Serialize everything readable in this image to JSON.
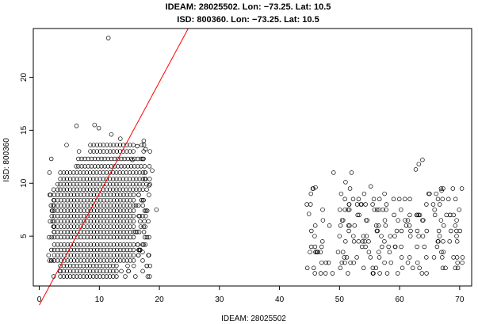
{
  "chart_data": {
    "type": "scatter",
    "title_lines": [
      "IDEAM: 28025502. Lon: −73.25. Lat: 10.5",
      "ISD: 800360. Lon: −73.25. Lat: 10.5"
    ],
    "xlabel": "IDEAM: 28025502",
    "ylabel": "ISD: 800360",
    "xlim": [
      -1,
      72
    ],
    "ylim": [
      0.3,
      24.6
    ],
    "x_ticks": [
      0,
      10,
      20,
      30,
      40,
      50,
      60,
      70
    ],
    "y_ticks": [
      5,
      10,
      15,
      20
    ],
    "grid": false,
    "legend": "none",
    "marker": "open-circle",
    "point_color": "#000000",
    "fit_line": {
      "color": "#ff0000",
      "from": [
        0,
        -1.5
      ],
      "to": [
        24.8,
        24.6
      ]
    },
    "series": [
      {
        "clusters": [
          {
            "x_range": [
              1.5,
              18.5
            ],
            "y_levels": [
              1.2,
              1.7,
              2.2,
              2.7,
              3.2,
              3.7,
              4.2,
              4.9,
              5.4,
              5.9,
              6.4,
              6.9,
              7.4,
              7.9,
              8.4,
              8.9,
              9.4,
              9.9,
              10.4,
              11.0,
              11.6,
              12.3,
              13.0,
              13.6
            ],
            "density": "high"
          },
          {
            "x_range": [
              44.5,
              70.5
            ],
            "y_levels": [
              1.5,
              2.0,
              2.5,
              3.0,
              3.5,
              4.0,
              4.5,
              5.0,
              5.5,
              6.0,
              6.5,
              7.0,
              7.5,
              8.0,
              8.5,
              9.0,
              9.5
            ],
            "density": "sparse"
          }
        ],
        "outliers": [
          {
            "x": 11.5,
            "y": 23.7
          },
          {
            "x": 6.2,
            "y": 15.4
          },
          {
            "x": 9.2,
            "y": 15.5
          },
          {
            "x": 9.9,
            "y": 15.2
          },
          {
            "x": 13.5,
            "y": 14.2
          },
          {
            "x": 12.0,
            "y": 14.6
          },
          {
            "x": 17.4,
            "y": 14.0
          },
          {
            "x": 16.3,
            "y": 13.5
          },
          {
            "x": 17.7,
            "y": 13.2
          },
          {
            "x": 15.5,
            "y": 12.2
          },
          {
            "x": 49.0,
            "y": 11.0
          },
          {
            "x": 52.0,
            "y": 11.0
          },
          {
            "x": 63.8,
            "y": 12.2
          },
          {
            "x": 63.2,
            "y": 11.8
          },
          {
            "x": 62.7,
            "y": 11.3
          },
          {
            "x": 51.0,
            "y": 10.1
          },
          {
            "x": 46.0,
            "y": 9.6
          },
          {
            "x": 44.9,
            "y": 7.1
          },
          {
            "x": 55.2,
            "y": 9.7
          },
          {
            "x": 67.0,
            "y": 9.3
          },
          {
            "x": 19.5,
            "y": 7.5
          },
          {
            "x": 18.3,
            "y": 9.8
          },
          {
            "x": 18.8,
            "y": 11.2
          },
          {
            "x": 17.2,
            "y": 3.5
          }
        ]
      }
    ]
  }
}
